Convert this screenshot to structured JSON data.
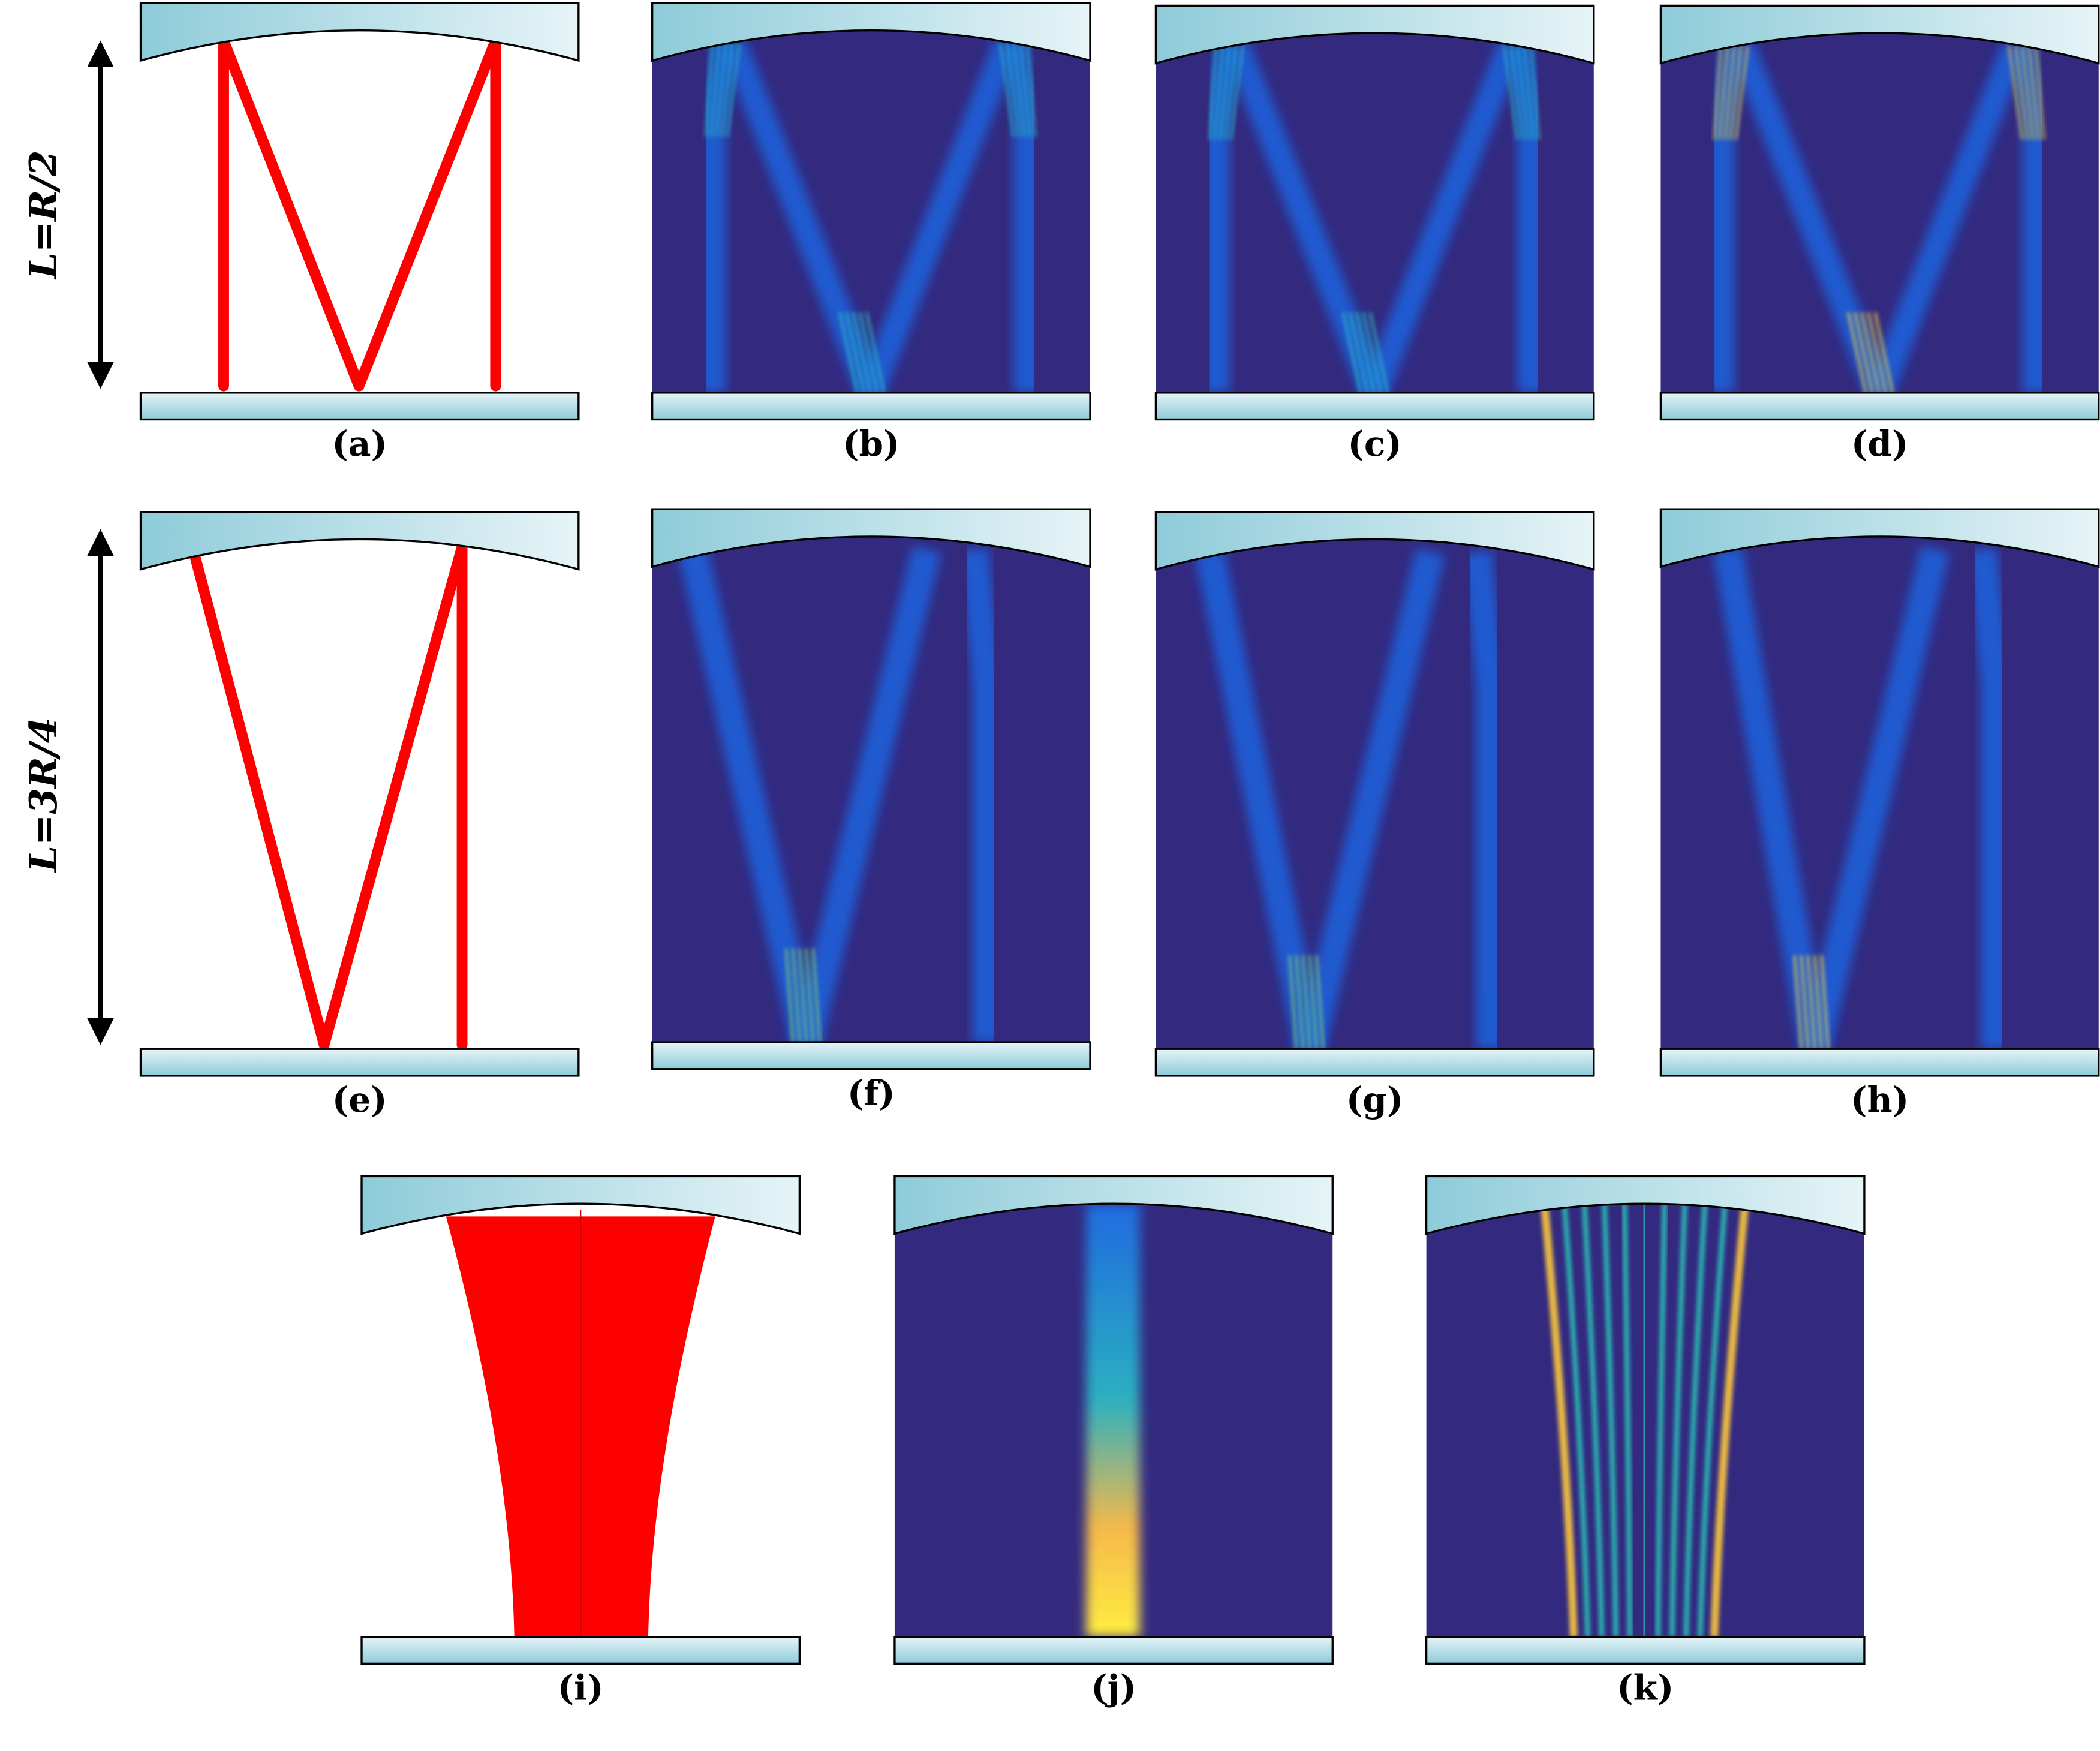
{
  "rows": [
    {
      "label": "L=R/2"
    },
    {
      "label": "L=3R/4"
    }
  ],
  "panels": [
    "(a)",
    "(b)",
    "(c)",
    "(d)",
    "(e)",
    "(f)",
    "(g)",
    "(h)",
    "(i)",
    "(j)",
    "(k)"
  ]
}
